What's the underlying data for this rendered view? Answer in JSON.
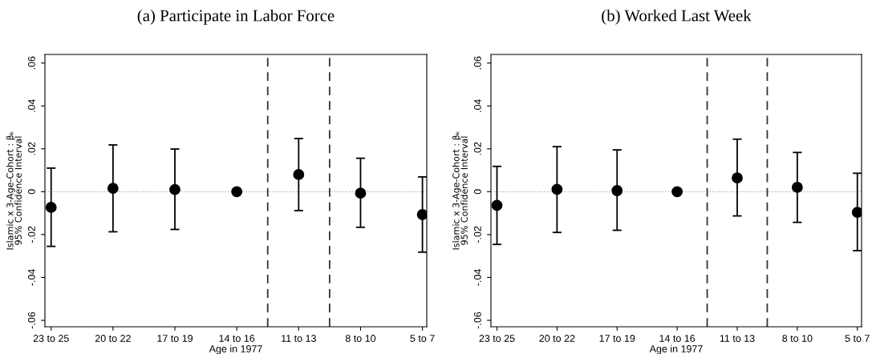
{
  "chart_data": [
    {
      "type": "scatter",
      "title": "(a) Participate in Labor Force",
      "xlabel": "Age in 1977",
      "ylabel": "Islamic x 3-Age-Cohort : βₖ\n95% Confidence Interval",
      "categories": [
        "23 to 25",
        "20 to 22",
        "17 to 19",
        "14 to 16",
        "11 to 13",
        "8 to 10",
        "5 to 7"
      ],
      "values": [
        -0.0073,
        0.0016,
        0.001,
        0,
        0.008,
        -0.0007,
        -0.0107
      ],
      "errors": [
        [
          -0.0255,
          0.011
        ],
        [
          -0.0187,
          0.0218
        ],
        [
          -0.0176,
          0.0199
        ],
        null,
        [
          -0.0088,
          0.0248
        ],
        [
          -0.0166,
          0.0156
        ],
        [
          -0.0282,
          0.0069
        ]
      ],
      "color": "#000000",
      "marker": "circle",
      "ylim": [
        -0.063,
        0.064
      ],
      "yticks": [
        {
          "value": -0.06,
          "label": "-.06"
        },
        {
          "value": -0.04,
          "label": "-.04"
        },
        {
          "value": -0.02,
          "label": "-.02"
        },
        0,
        {
          "value": 0.02,
          "label": ".02"
        },
        {
          "value": 0.04,
          "label": ".04"
        },
        {
          "value": 0.06,
          "label": ".06"
        }
      ],
      "ref_lines": [
        {
          "axis": "y",
          "value": 0,
          "color": "#aaaaaa",
          "line_style": "dotted"
        }
      ],
      "grid": false,
      "legend": false
    },
    {
      "type": "scatter",
      "title": "(b) Worked Last Week",
      "xlabel": "Age in 1977",
      "ylabel": "Islamic x 3-Age-Cohort : βₖ\n95% Confidence Interval",
      "categories": [
        "23 to 25",
        "20 to 22",
        "17 to 19",
        "14 to 16",
        "11 to 13",
        "8 to 10",
        "5 to 7"
      ],
      "values": [
        -0.0064,
        0.0011,
        0.0005,
        0,
        0.0064,
        0.002,
        -0.0096
      ],
      "errors": [
        [
          -0.0246,
          0.0118
        ],
        [
          -0.019,
          0.021
        ],
        [
          -0.018,
          0.0195
        ],
        null,
        [
          -0.0113,
          0.0245
        ],
        [
          -0.0143,
          0.0183
        ],
        [
          -0.0275,
          0.0086
        ]
      ],
      "color": "#000000",
      "marker": "circle",
      "ylim": [
        -0.063,
        0.064
      ],
      "yticks": [
        {
          "value": -0.06,
          "label": "-.06"
        },
        {
          "value": -0.04,
          "label": "-.04"
        },
        {
          "value": -0.02,
          "label": "-.02"
        },
        0,
        {
          "value": 0.02,
          "label": ".02"
        },
        {
          "value": 0.04,
          "label": ".04"
        },
        {
          "value": 0.06,
          "label": ".06"
        }
      ],
      "ref_lines": [
        {
          "axis": "y",
          "value": 0,
          "color": "#aaaaaa",
          "line_style": "dotted"
        }
      ],
      "grid": false,
      "legend": false
    }
  ]
}
